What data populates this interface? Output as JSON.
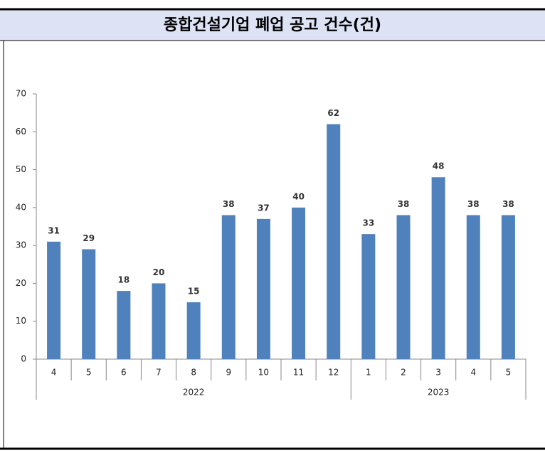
{
  "chart_data": {
    "type": "bar",
    "title": "종합건설기업 폐업 공고 건수(건)",
    "groups": [
      {
        "name": "2022",
        "categories": [
          "4",
          "5",
          "6",
          "7",
          "8",
          "9",
          "10",
          "11",
          "12"
        ]
      },
      {
        "name": "2023",
        "categories": [
          "1",
          "2",
          "3",
          "4",
          "5"
        ]
      }
    ],
    "values": [
      31,
      29,
      18,
      20,
      15,
      38,
      37,
      40,
      62,
      33,
      38,
      48,
      38,
      38
    ],
    "color": "#4f81bd",
    "ylim": [
      0,
      70
    ],
    "yticks": [
      0,
      10,
      20,
      30,
      40,
      50,
      60,
      70
    ],
    "grid": false
  }
}
